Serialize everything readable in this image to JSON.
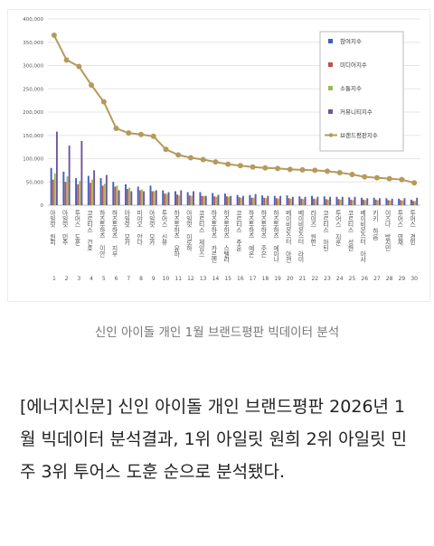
{
  "chart_data": {
    "type": "bar",
    "title": "",
    "xlabel": "",
    "ylabel": "",
    "ylim": [
      0,
      400000
    ],
    "yticks": [
      "400,000",
      "350,000",
      "300,000",
      "250,000",
      "200,000",
      "150,000",
      "100,000",
      "50,000",
      "0"
    ],
    "ranks": [
      "1",
      "2",
      "3",
      "4",
      "5",
      "6",
      "7",
      "8",
      "9",
      "10",
      "11",
      "12",
      "13",
      "14",
      "15",
      "16",
      "17",
      "18",
      "19",
      "20",
      "21",
      "22",
      "23",
      "24",
      "25",
      "26",
      "27",
      "28",
      "29",
      "30"
    ],
    "categories": [
      "아일릿 원희",
      "아일릿 민주",
      "투어스 도훈",
      "코르티스 건호",
      "하츠투하츠 이안",
      "하츠투하츠 지우",
      "아일릿 모카",
      "미야오 안나",
      "아일릿 모카",
      "투어스 신유",
      "하츠투하츠 유하",
      "아일릿 이로하",
      "코르티스 제임스",
      "하츠투하츠 카르멘",
      "하츠투하츠 스텔라",
      "코르티스 주훈",
      "하츠투하츠 예온",
      "하츠투하츠 주은",
      "하츠투하츠 에이나",
      "베이비몬스터 아현",
      "베이비몬스터 라미",
      "라이즈 원빈",
      "코르티스 마틴",
      "투어스 지훈",
      "코르티스 성현",
      "베이비몬스터 아사",
      "키키 하음",
      "이즈나 방지민",
      "투어스 영재",
      "투어스 경민"
    ],
    "series": [
      {
        "name": "참여지수",
        "color": "#3f5fbf",
        "values": [
          80000,
          72000,
          58000,
          63000,
          58000,
          50000,
          45000,
          40000,
          42000,
          32000,
          30000,
          28000,
          28000,
          26000,
          25000,
          22000,
          22000,
          21000,
          20000,
          21000,
          19000,
          20000,
          19000,
          18000,
          17000,
          16000,
          16000,
          15000,
          14000,
          12000
        ]
      },
      {
        "name": "미디어지수",
        "color": "#c0504d",
        "values": [
          55000,
          50000,
          45000,
          48000,
          42000,
          40000,
          35000,
          32000,
          30000,
          25000,
          23000,
          21000,
          20000,
          19000,
          19000,
          17000,
          16000,
          16000,
          15000,
          15000,
          14000,
          14000,
          13000,
          13000,
          12000,
          12000,
          12000,
          11000,
          11000,
          9000
        ]
      },
      {
        "name": "소통지수",
        "color": "#9bbb59",
        "values": [
          68000,
          62000,
          52000,
          55000,
          46000,
          42000,
          38000,
          34000,
          30000,
          24000,
          21000,
          20000,
          20000,
          18000,
          18000,
          16000,
          16000,
          15000,
          14000,
          14000,
          13000,
          13000,
          12000,
          12000,
          11000,
          11000,
          11000,
          10000,
          10000,
          9000
        ]
      },
      {
        "name": "커뮤니티지수",
        "color": "#7054a0",
        "values": [
          158000,
          128000,
          138000,
          75000,
          65000,
          32000,
          30000,
          30000,
          32000,
          28000,
          32000,
          30000,
          20000,
          22000,
          20000,
          20000,
          24000,
          20000,
          20000,
          18000,
          18000,
          18000,
          18000,
          18000,
          18000,
          15000,
          15000,
          14000,
          15000,
          16000
        ]
      },
      {
        "name": "브랜드평판지수",
        "color": "#b59a5c",
        "values": [
          365000,
          312000,
          298000,
          258000,
          222000,
          165000,
          155000,
          152000,
          148000,
          120000,
          108000,
          102000,
          98000,
          93000,
          88000,
          85000,
          82000,
          80000,
          79000,
          77000,
          76000,
          75000,
          73000,
          70000,
          66000,
          61000,
          59000,
          57000,
          55000,
          48000
        ]
      }
    ],
    "legend_position": "right",
    "grid": true
  },
  "caption": "신인 아이돌 개인 1월 브랜드평판 빅데이터 분석",
  "article": "[에너지신문] 신인 아이돌 개인 브랜드평판 2026년 1월 빅데이터 분석결과, 1위 아일릿 원희 2위 아일릿 민주 3위 투어스 도훈 순으로 분석됐다."
}
